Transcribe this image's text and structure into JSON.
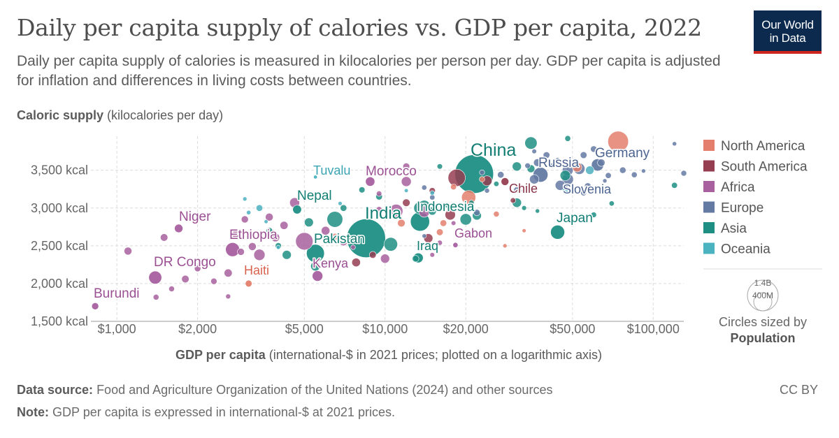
{
  "header": {
    "title": "Daily per capita supply of calories vs. GDP per capita, 2022",
    "subtitle": "Daily per capita supply of calories is measured in kilocalories per person per day. GDP per capita is adjusted for inflation and differences in living costs between countries.",
    "logo_line1": "Our World",
    "logo_line2": "in Data"
  },
  "footer": {
    "source_label": "Data source:",
    "source_text": "Food and Agriculture Organization of the United Nations (2024) and other sources",
    "note_label": "Note:",
    "note_text": "GDP per capita is expressed in international-$ at 2021 prices.",
    "license": "CC BY"
  },
  "colors": {
    "North America": "#e37f6c",
    "South America": "#953e51",
    "Africa": "#a8609f",
    "Europe": "#647aa3",
    "Asia": "#1f8f84",
    "Oceania": "#4bb2c0"
  },
  "chart_data": {
    "type": "scatter",
    "ylabel_bold": "Caloric supply",
    "ylabel_rest": "(kilocalories per day)",
    "xlabel_bold": "GDP per capita",
    "xlabel_rest": "(international-$ in 2021 prices; plotted on a logarithmic axis)",
    "x_scale": "log",
    "xlim": [
      800,
      130000
    ],
    "ylim": [
      1500,
      3950
    ],
    "x_ticks": [
      {
        "value": 1000,
        "label": "$1,000"
      },
      {
        "value": 2000,
        "label": "$2,000"
      },
      {
        "value": 5000,
        "label": "$5,000"
      },
      {
        "value": 10000,
        "label": "$10,000"
      },
      {
        "value": 20000,
        "label": "$20,000"
      },
      {
        "value": 50000,
        "label": "$50,000"
      },
      {
        "value": 100000,
        "label": "$100,000"
      }
    ],
    "y_ticks": [
      {
        "value": 1500,
        "label": "1,500 kcal"
      },
      {
        "value": 2000,
        "label": "2,000 kcal"
      },
      {
        "value": 2500,
        "label": "2,500 kcal"
      },
      {
        "value": 3000,
        "label": "3,000 kcal"
      },
      {
        "value": 3500,
        "label": "3,500 kcal"
      }
    ],
    "grid": true,
    "legend": {
      "placement": "right",
      "entries": [
        "North America",
        "South America",
        "Africa",
        "Europe",
        "Asia",
        "Oceania"
      ]
    },
    "size_legend": {
      "large_label": "1.4B",
      "small_label": "400M",
      "caption_line1": "Circles sized by",
      "caption_line2": "Population"
    },
    "labeled_points": [
      {
        "label": "China",
        "region": "Asia",
        "x": 21500,
        "y": 3450,
        "pop": 1410
      },
      {
        "label": "India",
        "region": "Asia",
        "x": 8500,
        "y": 2600,
        "pop": 1420
      },
      {
        "label": "Pakistan",
        "region": "Asia",
        "x": 5500,
        "y": 2400,
        "pop": 235
      },
      {
        "label": "Indonesia",
        "region": "Asia",
        "x": 13500,
        "y": 2820,
        "pop": 275
      },
      {
        "label": "Nepal",
        "region": "Asia",
        "x": 4700,
        "y": 2980,
        "pop": 30
      },
      {
        "label": "Japan",
        "region": "Asia",
        "x": 44000,
        "y": 2680,
        "pop": 125
      },
      {
        "label": "Iraq",
        "region": "Asia",
        "x": 13300,
        "y": 2340,
        "pop": 44
      },
      {
        "label": "Germany",
        "region": "Europe",
        "x": 62000,
        "y": 3570,
        "pop": 84
      },
      {
        "label": "Russia",
        "region": "Europe",
        "x": 38000,
        "y": 3440,
        "pop": 144
      },
      {
        "label": "Slovenia",
        "region": "Europe",
        "x": 47000,
        "y": 3290,
        "pop": 2
      },
      {
        "label": "Morocco",
        "region": "Africa",
        "x": 8800,
        "y": 3350,
        "pop": 37
      },
      {
        "label": "Niger",
        "region": "Africa",
        "x": 1700,
        "y": 2730,
        "pop": 26
      },
      {
        "label": "Ethiopia",
        "region": "Africa",
        "x": 2700,
        "y": 2450,
        "pop": 123
      },
      {
        "label": "DR Congo",
        "region": "Africa",
        "x": 1390,
        "y": 2080,
        "pop": 100
      },
      {
        "label": "Kenya",
        "region": "Africa",
        "x": 5600,
        "y": 2100,
        "pop": 54
      },
      {
        "label": "Burundi",
        "region": "Africa",
        "x": 830,
        "y": 1700,
        "pop": 13
      },
      {
        "label": "Gabon",
        "region": "Africa",
        "x": 18300,
        "y": 2510,
        "pop": 2.4
      },
      {
        "label": "Chile",
        "region": "South America",
        "x": 28000,
        "y": 3350,
        "pop": 19
      },
      {
        "label": "Haiti",
        "region": "North America",
        "x": 3100,
        "y": 2000,
        "pop": 11
      },
      {
        "label": "Tuvalu",
        "region": "Oceania",
        "x": 5500,
        "y": 3410,
        "pop": 0.01
      }
    ],
    "unlabeled_points": [
      {
        "region": "North America",
        "x": 74000,
        "y": 3880,
        "pop": 333
      },
      {
        "region": "North America",
        "x": 20500,
        "y": 3140,
        "pop": 128
      },
      {
        "region": "North America",
        "x": 52000,
        "y": 3540,
        "pop": 39
      },
      {
        "region": "North America",
        "x": 18000,
        "y": 3280,
        "pop": 6
      },
      {
        "region": "North America",
        "x": 16000,
        "y": 2680,
        "pop": 11
      },
      {
        "region": "North America",
        "x": 26000,
        "y": 2920,
        "pop": 5
      },
      {
        "region": "North America",
        "x": 23000,
        "y": 3380,
        "pop": 4
      },
      {
        "region": "North America",
        "x": 11500,
        "y": 2800,
        "pop": 18
      },
      {
        "region": "North America",
        "x": 16500,
        "y": 2800,
        "pop": 10
      },
      {
        "region": "North America",
        "x": 6500,
        "y": 2620,
        "pop": 10
      },
      {
        "region": "North America",
        "x": 28000,
        "y": 2500,
        "pop": 0.3
      },
      {
        "region": "North America",
        "x": 33000,
        "y": 2700,
        "pop": 0.1
      },
      {
        "region": "South America",
        "x": 18500,
        "y": 3400,
        "pop": 215
      },
      {
        "region": "South America",
        "x": 24000,
        "y": 3360,
        "pop": 46
      },
      {
        "region": "South America",
        "x": 17500,
        "y": 2910,
        "pop": 52
      },
      {
        "region": "South America",
        "x": 14500,
        "y": 2600,
        "pop": 34
      },
      {
        "region": "South America",
        "x": 12000,
        "y": 3070,
        "pop": 18
      },
      {
        "region": "South America",
        "x": 15000,
        "y": 3230,
        "pop": 7
      },
      {
        "region": "South America",
        "x": 9000,
        "y": 2380,
        "pop": 12
      },
      {
        "region": "South America",
        "x": 7800,
        "y": 2280,
        "pop": 28
      },
      {
        "region": "South America",
        "x": 30000,
        "y": 3100,
        "pop": 3.4
      },
      {
        "region": "Africa",
        "x": 5000,
        "y": 2560,
        "pop": 218
      },
      {
        "region": "Africa",
        "x": 14000,
        "y": 2950,
        "pop": 60
      },
      {
        "region": "Africa",
        "x": 11000,
        "y": 2960,
        "pop": 111
      },
      {
        "region": "Africa",
        "x": 3800,
        "y": 2650,
        "pop": 33
      },
      {
        "region": "Africa",
        "x": 1100,
        "y": 2430,
        "pop": 20
      },
      {
        "region": "Africa",
        "x": 1600,
        "y": 1930,
        "pop": 5
      },
      {
        "region": "Africa",
        "x": 1800,
        "y": 2060,
        "pop": 17
      },
      {
        "region": "Africa",
        "x": 2300,
        "y": 2030,
        "pop": 8
      },
      {
        "region": "Africa",
        "x": 2900,
        "y": 2420,
        "pop": 13
      },
      {
        "region": "Africa",
        "x": 3400,
        "y": 2380,
        "pop": 65
      },
      {
        "region": "Africa",
        "x": 3900,
        "y": 2610,
        "pop": 27
      },
      {
        "region": "Africa",
        "x": 4200,
        "y": 2770,
        "pop": 22
      },
      {
        "region": "Africa",
        "x": 6000,
        "y": 2700,
        "pop": 28
      },
      {
        "region": "Africa",
        "x": 4600,
        "y": 3070,
        "pop": 45
      },
      {
        "region": "Africa",
        "x": 12000,
        "y": 3550,
        "pop": 12
      },
      {
        "region": "Africa",
        "x": 12000,
        "y": 3350,
        "pop": 45
      },
      {
        "region": "Africa",
        "x": 9500,
        "y": 2980,
        "pop": 6
      },
      {
        "region": "Africa",
        "x": 10000,
        "y": 2330,
        "pop": 34
      },
      {
        "region": "Africa",
        "x": 7000,
        "y": 2550,
        "pop": 17
      },
      {
        "region": "Africa",
        "x": 3000,
        "y": 2850,
        "pop": 14
      },
      {
        "region": "Africa",
        "x": 2600,
        "y": 2140,
        "pop": 22
      },
      {
        "region": "Africa",
        "x": 7600,
        "y": 2480,
        "pop": 1.2
      },
      {
        "region": "Africa",
        "x": 15000,
        "y": 2380,
        "pop": 1.4
      },
      {
        "region": "Africa",
        "x": 18000,
        "y": 2800,
        "pop": 1.3
      },
      {
        "region": "Africa",
        "x": 3200,
        "y": 2490,
        "pop": 20
      },
      {
        "region": "Africa",
        "x": 2600,
        "y": 1830,
        "pop": 2
      },
      {
        "region": "Africa",
        "x": 2000,
        "y": 2200,
        "pop": 9
      },
      {
        "region": "Africa",
        "x": 1400,
        "y": 1820,
        "pop": 5
      },
      {
        "region": "Africa",
        "x": 2800,
        "y": 2650,
        "pop": 35
      },
      {
        "region": "Africa",
        "x": 3700,
        "y": 2880,
        "pop": 20
      },
      {
        "region": "Africa",
        "x": 1500,
        "y": 2610,
        "pop": 17
      },
      {
        "region": "Africa",
        "x": 9500,
        "y": 3190,
        "pop": 3.5
      },
      {
        "region": "Africa",
        "x": 16000,
        "y": 2540,
        "pop": 2.6
      },
      {
        "region": "Europe",
        "x": 48000,
        "y": 3380,
        "pop": 68
      },
      {
        "region": "Europe",
        "x": 53000,
        "y": 3520,
        "pop": 67
      },
      {
        "region": "Europe",
        "x": 48000,
        "y": 3500,
        "pop": 59
      },
      {
        "region": "Europe",
        "x": 45000,
        "y": 3300,
        "pop": 47
      },
      {
        "region": "Europe",
        "x": 36000,
        "y": 3380,
        "pop": 38
      },
      {
        "region": "Europe",
        "x": 64000,
        "y": 3600,
        "pop": 17
      },
      {
        "region": "Europe",
        "x": 60000,
        "y": 3780,
        "pop": 9
      },
      {
        "region": "Europe",
        "x": 55000,
        "y": 3700,
        "pop": 11
      },
      {
        "region": "Europe",
        "x": 120000,
        "y": 3850,
        "pop": 0.6
      },
      {
        "region": "Europe",
        "x": 130000,
        "y": 3460,
        "pop": 5
      },
      {
        "region": "Europe",
        "x": 85000,
        "y": 3440,
        "pop": 5.4
      },
      {
        "region": "Europe",
        "x": 77000,
        "y": 3500,
        "pop": 8.7
      },
      {
        "region": "Europe",
        "x": 68000,
        "y": 3430,
        "pop": 5.9
      },
      {
        "region": "Europe",
        "x": 40000,
        "y": 3700,
        "pop": 10
      },
      {
        "region": "Europe",
        "x": 37000,
        "y": 3600,
        "pop": 19
      },
      {
        "region": "Europe",
        "x": 34000,
        "y": 3560,
        "pop": 3.8
      },
      {
        "region": "Europe",
        "x": 27000,
        "y": 3440,
        "pop": 9.7
      },
      {
        "region": "Europe",
        "x": 42000,
        "y": 3560,
        "pop": 2.8
      },
      {
        "region": "Europe",
        "x": 31000,
        "y": 3240,
        "pop": 7
      },
      {
        "region": "Europe",
        "x": 23000,
        "y": 3470,
        "pop": 2.8
      },
      {
        "region": "Europe",
        "x": 14000,
        "y": 3270,
        "pop": 2.6
      },
      {
        "region": "Europe",
        "x": 15000,
        "y": 3140,
        "pop": 3
      },
      {
        "region": "Europe",
        "x": 22000,
        "y": 2940,
        "pop": 9
      },
      {
        "region": "Europe",
        "x": 57000,
        "y": 3290,
        "pop": 10
      },
      {
        "region": "Europe",
        "x": 36000,
        "y": 3750,
        "pop": 1.3
      },
      {
        "region": "Europe",
        "x": 92000,
        "y": 3490,
        "pop": 0.4
      },
      {
        "region": "Europe",
        "x": 66000,
        "y": 3360,
        "pop": 0.4
      },
      {
        "region": "Europe",
        "x": 24000,
        "y": 3230,
        "pop": 2.1
      },
      {
        "region": "Europe",
        "x": 33000,
        "y": 3230,
        "pop": 2.8
      },
      {
        "region": "Europe",
        "x": 14000,
        "y": 2630,
        "pop": 0.6
      },
      {
        "region": "Europe",
        "x": 44000,
        "y": 3640,
        "pop": 0.3
      },
      {
        "region": "Europe",
        "x": 55000,
        "y": 3200,
        "pop": 5.5
      },
      {
        "region": "Asia",
        "x": 14000,
        "y": 3020,
        "pop": 85
      },
      {
        "region": "Asia",
        "x": 22000,
        "y": 2900,
        "pop": 33
      },
      {
        "region": "Asia",
        "x": 13500,
        "y": 3000,
        "pop": 89
      },
      {
        "region": "Asia",
        "x": 6500,
        "y": 2850,
        "pop": 170
      },
      {
        "region": "Asia",
        "x": 20000,
        "y": 2850,
        "pop": 70
      },
      {
        "region": "Asia",
        "x": 10500,
        "y": 2520,
        "pop": 115
      },
      {
        "region": "Asia",
        "x": 31000,
        "y": 3550,
        "pop": 34
      },
      {
        "region": "Asia",
        "x": 35000,
        "y": 3860,
        "pop": 86
      },
      {
        "region": "Asia",
        "x": 47000,
        "y": 3430,
        "pop": 52
      },
      {
        "region": "Asia",
        "x": 5500,
        "y": 2230,
        "pop": 39
      },
      {
        "region": "Asia",
        "x": 13000,
        "y": 2330,
        "pop": 10
      },
      {
        "region": "Asia",
        "x": 7000,
        "y": 3000,
        "pop": 10
      },
      {
        "region": "Asia",
        "x": 5200,
        "y": 2810,
        "pop": 33
      },
      {
        "region": "Asia",
        "x": 31000,
        "y": 3070,
        "pop": 36
      },
      {
        "region": "Asia",
        "x": 60000,
        "y": 2910,
        "pop": 4.3
      },
      {
        "region": "Asia",
        "x": 120000,
        "y": 3300,
        "pop": 6
      },
      {
        "region": "Asia",
        "x": 70000,
        "y": 3060,
        "pop": 2.7
      },
      {
        "region": "Asia",
        "x": 35000,
        "y": 3520,
        "pop": 20
      },
      {
        "region": "Asia",
        "x": 26000,
        "y": 3320,
        "pop": 3
      },
      {
        "region": "Asia",
        "x": 17000,
        "y": 3040,
        "pop": 3.7
      },
      {
        "region": "Asia",
        "x": 8200,
        "y": 3240,
        "pop": 7
      },
      {
        "region": "Asia",
        "x": 9500,
        "y": 3150,
        "pop": 10
      },
      {
        "region": "Asia",
        "x": 5000,
        "y": 3150,
        "pop": 6.6
      },
      {
        "region": "Asia",
        "x": 3700,
        "y": 2700,
        "pop": 9.8
      },
      {
        "region": "Asia",
        "x": 4300,
        "y": 2380,
        "pop": 33
      },
      {
        "region": "Asia",
        "x": 37000,
        "y": 2960,
        "pop": 0.5
      },
      {
        "region": "Asia",
        "x": 48000,
        "y": 3920,
        "pop": 5.5
      },
      {
        "region": "Asia",
        "x": 16000,
        "y": 3550,
        "pop": 3.4
      },
      {
        "region": "Asia",
        "x": 33000,
        "y": 3000,
        "pop": 1.5
      },
      {
        "region": "Asia",
        "x": 21000,
        "y": 3070,
        "pop": 2.8
      },
      {
        "region": "Asia",
        "x": 15000,
        "y": 2960,
        "pop": 23
      },
      {
        "region": "Asia",
        "x": 4000,
        "y": 2500,
        "pop": 7.5
      },
      {
        "region": "Oceania",
        "x": 58000,
        "y": 3500,
        "pop": 26
      },
      {
        "region": "Oceania",
        "x": 47000,
        "y": 3230,
        "pop": 5
      },
      {
        "region": "Oceania",
        "x": 15000,
        "y": 3200,
        "pop": 0.9
      },
      {
        "region": "Oceania",
        "x": 3400,
        "y": 3000,
        "pop": 10
      },
      {
        "region": "Oceania",
        "x": 3100,
        "y": 2940,
        "pop": 0.7
      },
      {
        "region": "Oceania",
        "x": 3000,
        "y": 3120,
        "pop": 0.3
      },
      {
        "region": "Oceania",
        "x": 6800,
        "y": 3060,
        "pop": 0.2
      },
      {
        "region": "Oceania",
        "x": 3600,
        "y": 2820,
        "pop": 0.1
      },
      {
        "region": "Oceania",
        "x": 12000,
        "y": 3230,
        "pop": 0.1
      },
      {
        "region": "Oceania",
        "x": 4000,
        "y": 2480,
        "pop": 0.3
      }
    ]
  }
}
